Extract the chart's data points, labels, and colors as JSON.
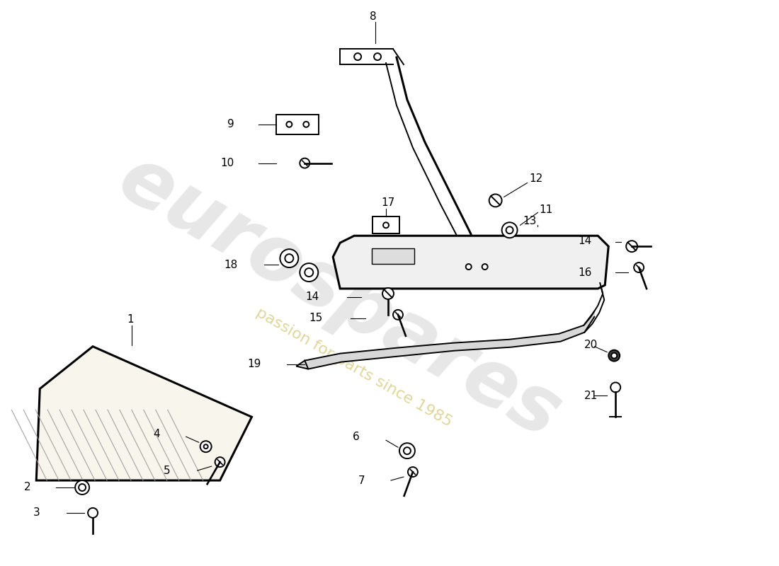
{
  "background_color": "#ffffff",
  "fig_width": 11.0,
  "fig_height": 8.0,
  "watermark_text": "eurospares",
  "watermark_subtext": "passion for parts since 1985",
  "line_color": "#000000",
  "lw": 1.4,
  "lw_thick": 2.2
}
